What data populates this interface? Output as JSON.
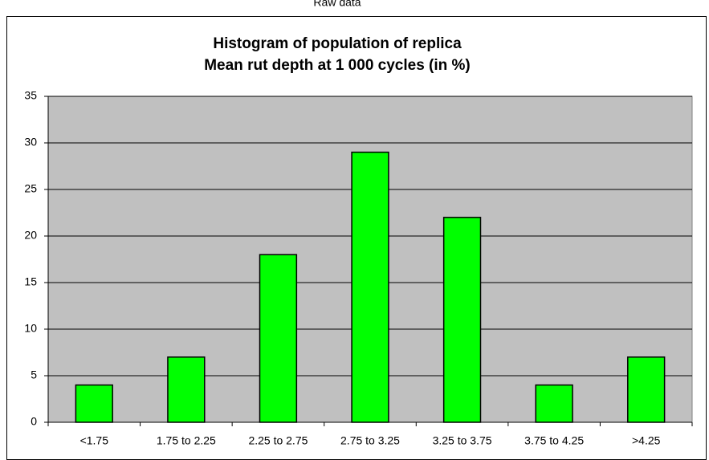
{
  "header": "Raw data",
  "chart_data": {
    "type": "bar",
    "title": "Histogram of population of replica",
    "subtitle": "Mean rut depth at 1 000 cycles (in %)",
    "categories": [
      "<1.75",
      "1.75 to 2.25",
      "2.25 to 2.75",
      "2.75 to 3.25",
      "3.25 to 3.75",
      "3.75 to 4.25",
      ">4.25"
    ],
    "values": [
      4,
      7,
      18,
      29,
      22,
      4,
      7
    ],
    "color": "#00ff00",
    "ylim": [
      0,
      35
    ],
    "yticks": [
      0,
      5,
      10,
      15,
      20,
      25,
      30,
      35
    ],
    "grid": true
  }
}
